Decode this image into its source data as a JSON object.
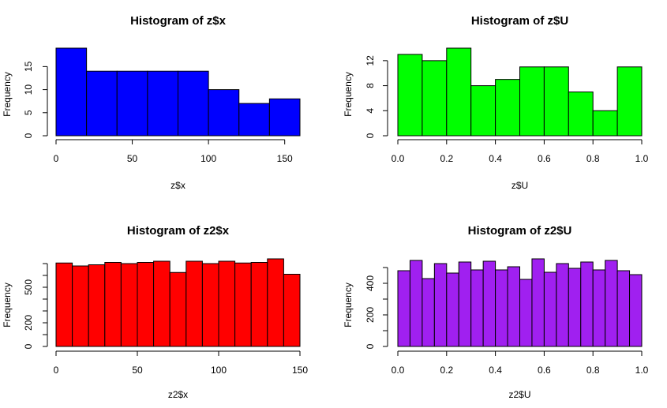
{
  "chart_data": [
    {
      "type": "bar",
      "title": "Histogram of z$x",
      "xlabel": "z$x",
      "ylabel": "Frequency",
      "color": "#0000ff",
      "breaks": [
        0,
        20,
        40,
        60,
        80,
        100,
        120,
        140,
        160
      ],
      "values": [
        19,
        14,
        14,
        14,
        14,
        10,
        7,
        8
      ],
      "xlim": [
        0,
        160
      ],
      "ylim": [
        0,
        19
      ],
      "xticks": [
        0,
        50,
        100,
        150
      ],
      "yticks": [
        0,
        5,
        10,
        15
      ],
      "xtick_labels": [
        "0",
        "50",
        "100",
        "150"
      ],
      "ytick_labels": [
        "0",
        "5",
        "10",
        "15"
      ]
    },
    {
      "type": "bar",
      "title": "Histogram of z$U",
      "xlabel": "z$U",
      "ylabel": "Frequency",
      "color": "#00ff00",
      "breaks": [
        0,
        0.1,
        0.2,
        0.3,
        0.4,
        0.5,
        0.6,
        0.7,
        0.8,
        0.9,
        1.0
      ],
      "values": [
        13,
        12,
        14,
        8,
        9,
        11,
        11,
        7,
        4,
        11
      ],
      "xlim": [
        0,
        1
      ],
      "ylim": [
        0,
        14
      ],
      "xticks": [
        0,
        0.2,
        0.4,
        0.6,
        0.8,
        1.0
      ],
      "yticks": [
        0,
        4,
        8,
        12
      ],
      "xtick_labels": [
        "0.0",
        "0.2",
        "0.4",
        "0.6",
        "0.8",
        "1.0"
      ],
      "ytick_labels": [
        "0",
        "4",
        "8",
        "12"
      ]
    },
    {
      "type": "bar",
      "title": "Histogram of z2$x",
      "xlabel": "z2$x",
      "ylabel": "Frequency",
      "color": "#ff0000",
      "breaks": [
        0,
        10,
        20,
        30,
        40,
        50,
        60,
        70,
        80,
        90,
        100,
        110,
        120,
        130,
        140,
        150
      ],
      "values": [
        705,
        680,
        690,
        710,
        700,
        710,
        720,
        625,
        720,
        700,
        720,
        705,
        710,
        740,
        610
      ],
      "xlim": [
        0,
        150
      ],
      "ylim": [
        0,
        740
      ],
      "xticks": [
        0,
        50,
        100,
        150
      ],
      "yticks": [
        0,
        100,
        200,
        300,
        400,
        500,
        600,
        700
      ],
      "xtick_labels": [
        "0",
        "50",
        "100",
        "150"
      ],
      "ytick_labels": [
        "0",
        "",
        "200",
        "",
        "",
        "500",
        "",
        ""
      ]
    },
    {
      "type": "bar",
      "title": "Histogram of z2$U",
      "xlabel": "z2$U",
      "ylabel": "Frequency",
      "color": "#a020f0",
      "breaks": [
        0,
        0.05,
        0.1,
        0.15,
        0.2,
        0.25,
        0.3,
        0.35,
        0.4,
        0.45,
        0.5,
        0.55,
        0.6,
        0.65,
        0.7,
        0.75,
        0.8,
        0.85,
        0.9,
        0.95,
        1.0
      ],
      "values": [
        480,
        545,
        430,
        525,
        465,
        535,
        485,
        540,
        485,
        505,
        425,
        555,
        470,
        525,
        495,
        535,
        485,
        545,
        480,
        455
      ],
      "xlim": [
        0,
        1
      ],
      "ylim": [
        0,
        555
      ],
      "xticks": [
        0,
        0.2,
        0.4,
        0.6,
        0.8,
        1.0
      ],
      "yticks": [
        0,
        100,
        200,
        300,
        400,
        500
      ],
      "xtick_labels": [
        "0.0",
        "0.2",
        "0.4",
        "0.6",
        "0.8",
        "1.0"
      ],
      "ytick_labels": [
        "0",
        "",
        "200",
        "",
        "400",
        ""
      ]
    }
  ]
}
